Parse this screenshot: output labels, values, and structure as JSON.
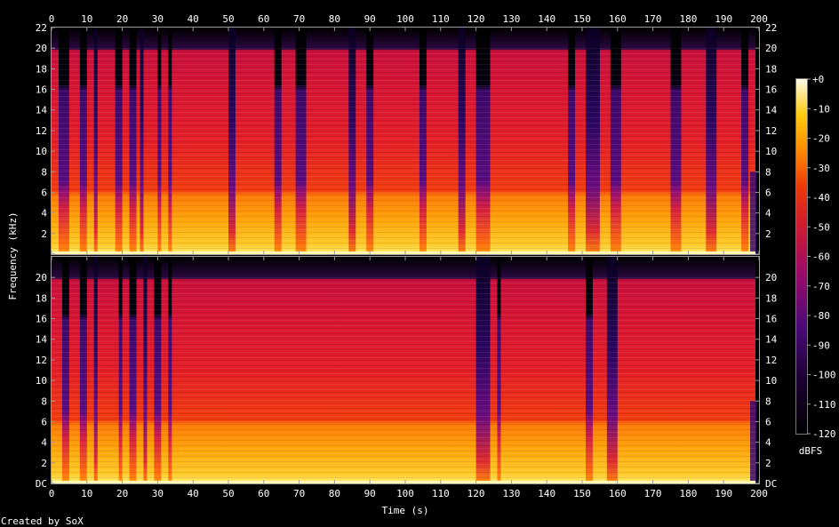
{
  "chart_data": {
    "type": "heatmap",
    "subtype": "spectrogram",
    "channels": 2,
    "xlabel": "Time (s)",
    "ylabel": "Frequency (kHz)",
    "xlim": [
      0,
      200
    ],
    "ylim": [
      0,
      22
    ],
    "x_ticks": [
      0,
      10,
      20,
      30,
      40,
      50,
      60,
      70,
      80,
      90,
      100,
      110,
      120,
      130,
      140,
      150,
      160,
      170,
      180,
      190,
      200
    ],
    "y_tick_values": [
      0,
      2,
      4,
      6,
      8,
      10,
      12,
      14,
      16,
      18,
      20,
      22
    ],
    "y_tick_labels_top": [
      "",
      "2",
      "4",
      "6",
      "8",
      "10",
      "12",
      "14",
      "16",
      "18",
      "20",
      "22"
    ],
    "y_tick_labels_bottom": [
      "DC",
      "2",
      "4",
      "6",
      "8",
      "10",
      "12",
      "14",
      "16",
      "18",
      "20"
    ],
    "colorbar": {
      "label": "dBFS",
      "ticks": [
        0,
        -10,
        -20,
        -30,
        -40,
        -50,
        -60,
        -70,
        -80,
        -90,
        -100,
        -110,
        -120
      ],
      "tick_labels": [
        "+0",
        "-10",
        "-20",
        "-30",
        "-40",
        "-50",
        "-60",
        "-70",
        "-80",
        "-90",
        "-100",
        "-110",
        "-120"
      ],
      "range": [
        -120,
        0
      ]
    },
    "bandwidth_cutoff_khz": 20,
    "audio_end_s": 199,
    "quiet_segments_top_s": [
      [
        2,
        5
      ],
      [
        8,
        10
      ],
      [
        12,
        13
      ],
      [
        18,
        20
      ],
      [
        22,
        24
      ],
      [
        25,
        26
      ],
      [
        30,
        31
      ],
      [
        33,
        34
      ],
      [
        50,
        52
      ],
      [
        63,
        65
      ],
      [
        69,
        72
      ],
      [
        84,
        86
      ],
      [
        89,
        91
      ],
      [
        104,
        106
      ],
      [
        115,
        117
      ],
      [
        120,
        124
      ],
      [
        146,
        148
      ],
      [
        151,
        155
      ],
      [
        158,
        161
      ],
      [
        175,
        178
      ],
      [
        185,
        188
      ],
      [
        195,
        197
      ]
    ],
    "quiet_segments_bottom_s": [
      [
        3,
        5
      ],
      [
        8,
        10
      ],
      [
        12,
        13
      ],
      [
        19,
        20
      ],
      [
        22,
        24
      ],
      [
        26,
        27
      ],
      [
        29,
        31
      ],
      [
        33,
        34
      ],
      [
        120,
        124
      ],
      [
        126,
        127
      ],
      [
        151,
        153
      ],
      [
        157,
        160
      ]
    ],
    "footer": "Created by SoX"
  }
}
